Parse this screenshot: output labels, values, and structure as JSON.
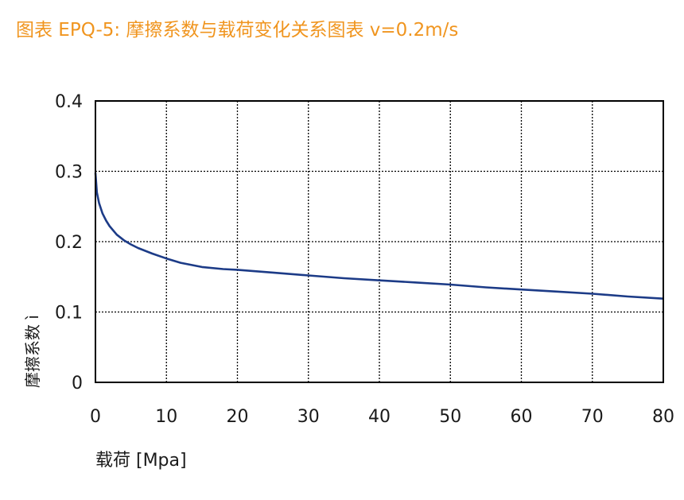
{
  "title": "图表 EPQ-5: 摩擦系数与载荷变化关系图表 v=0.2m/s",
  "colors": {
    "title": "#f0951f",
    "series": "#1c3b87",
    "grid": "#000000"
  },
  "chart_data": {
    "type": "line",
    "xlabel": "载荷 [Mpa]",
    "ylabel": "摩擦系数 ì",
    "xlim": [
      0,
      80
    ],
    "ylim": [
      0,
      0.4
    ],
    "xticks": [
      "0",
      "10",
      "20",
      "30",
      "40",
      "50",
      "60",
      "70",
      "80"
    ],
    "yticks": [
      "0",
      "0.1",
      "0.2",
      "0.3",
      "0.4"
    ],
    "grid": true,
    "series": [
      {
        "x": [
          0,
          0.2,
          0.5,
          1,
          1.5,
          2,
          3,
          4,
          5,
          6,
          8,
          10,
          12,
          15,
          18,
          20,
          25,
          30,
          35,
          40,
          45,
          50,
          55,
          60,
          65,
          70,
          75,
          80
        ],
        "y": [
          0.298,
          0.27,
          0.255,
          0.24,
          0.23,
          0.222,
          0.21,
          0.202,
          0.196,
          0.191,
          0.183,
          0.176,
          0.17,
          0.164,
          0.161,
          0.16,
          0.156,
          0.152,
          0.148,
          0.145,
          0.142,
          0.139,
          0.135,
          0.132,
          0.129,
          0.126,
          0.122,
          0.119
        ]
      }
    ]
  }
}
